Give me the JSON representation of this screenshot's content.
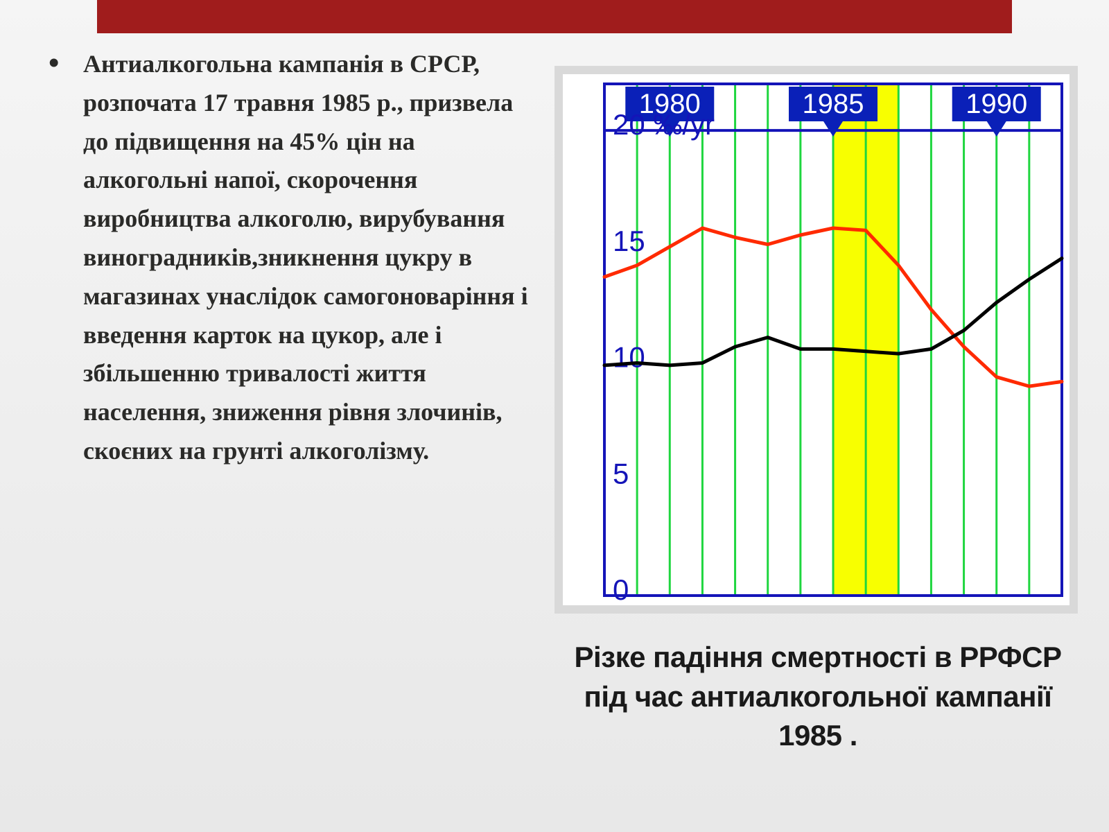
{
  "bullet_text": "Антиалкогольна кампанія в СРСР, розпочата 17 травня 1985 р., призвела до підвищення на 45% цін на алкогольні напої, скорочення виробництва алкоголю, вирубування виноградників,зникнення цукру в магазинах унаслідок самогоноваріння і введення карток на цукор, але і збільшенню тривалості життя населення, зниження рівня злочинів, скоєних на грунті алкоголізму.",
  "caption_text": "Різке падіння смертності в РРФСР під час антиалкогольної кампанії 1985 .",
  "chart": {
    "type": "line",
    "background_color": "#ffffff",
    "outer_frame_color": "#d9d9d9",
    "plot_border_color": "#1414b8",
    "plot_border_width": 4,
    "grid_vertical_color": "#1fd63f",
    "grid_vertical_width": 3,
    "highlight_fill": "#f8ff00",
    "highlight_years": [
      1985,
      1987
    ],
    "x_range": [
      1978,
      1992
    ],
    "x_gridlines": [
      1978,
      1979,
      1980,
      1981,
      1982,
      1983,
      1984,
      1985,
      1986,
      1987,
      1988,
      1989,
      1990,
      1991,
      1992
    ],
    "year_flags": [
      {
        "year": 1980,
        "label": "1980"
      },
      {
        "year": 1985,
        "label": "1985"
      },
      {
        "year": 1990,
        "label": "1990"
      }
    ],
    "year_flag_fill": "#0a20b8",
    "year_flag_text_color": "#ffffff",
    "year_flag_fontsize": 40,
    "y_range": [
      0,
      22
    ],
    "y_ticks": [
      0,
      5,
      10,
      15,
      20
    ],
    "y_tick_label_20": "20 ‰/yr",
    "y_tick_color": "#1414b8",
    "y_tick_fontsize": 42,
    "y_gridline_at_20": true,
    "series": [
      {
        "name": "red",
        "color": "#ff2a00",
        "width": 5,
        "points": [
          [
            1978,
            13.7
          ],
          [
            1979,
            14.2
          ],
          [
            1980,
            15.0
          ],
          [
            1981,
            15.8
          ],
          [
            1982,
            15.4
          ],
          [
            1983,
            15.1
          ],
          [
            1984,
            15.5
          ],
          [
            1985,
            15.8
          ],
          [
            1986,
            15.7
          ],
          [
            1987,
            14.2
          ],
          [
            1988,
            12.3
          ],
          [
            1989,
            10.7
          ],
          [
            1990,
            9.4
          ],
          [
            1991,
            9.0
          ],
          [
            1992,
            9.2
          ]
        ]
      },
      {
        "name": "black",
        "color": "#000000",
        "width": 5,
        "points": [
          [
            1978,
            9.9
          ],
          [
            1979,
            10.0
          ],
          [
            1980,
            9.9
          ],
          [
            1981,
            10.0
          ],
          [
            1982,
            10.7
          ],
          [
            1983,
            11.1
          ],
          [
            1984,
            10.6
          ],
          [
            1985,
            10.6
          ],
          [
            1986,
            10.5
          ],
          [
            1987,
            10.4
          ],
          [
            1988,
            10.6
          ],
          [
            1989,
            11.4
          ],
          [
            1990,
            12.6
          ],
          [
            1991,
            13.6
          ],
          [
            1992,
            14.5
          ]
        ]
      }
    ]
  }
}
